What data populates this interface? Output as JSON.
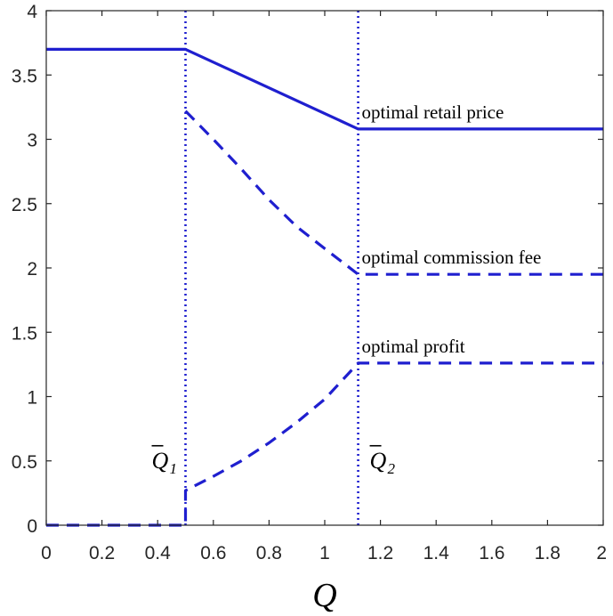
{
  "chart_data": {
    "type": "line",
    "xlabel": "Q",
    "xlim": [
      0,
      2
    ],
    "ylim": [
      0,
      4
    ],
    "x_ticks": [
      "0",
      "0.2",
      "0.4",
      "0.6",
      "0.8",
      "1",
      "1.2",
      "1.4",
      "1.6",
      "1.8",
      "2"
    ],
    "y_ticks": [
      "0",
      "0.5",
      "1",
      "1.5",
      "2",
      "2.5",
      "3",
      "3.5",
      "4"
    ],
    "grid": false,
    "line_color": "#1f1fcf",
    "series": [
      {
        "name": "optimal retail price",
        "style": "solid",
        "x": [
          0,
          0.5,
          1.12,
          2
        ],
        "y": [
          3.7,
          3.7,
          3.08,
          3.08
        ]
      },
      {
        "name": "optimal commission fee",
        "style": "dashed",
        "x": [
          0.5,
          0.6,
          0.7,
          0.8,
          0.9,
          1.0,
          1.12,
          2
        ],
        "y": [
          3.22,
          3.0,
          2.77,
          2.53,
          2.32,
          2.15,
          1.95,
          1.95
        ]
      },
      {
        "name": "optimal profit",
        "style": "dashed",
        "x": [
          0,
          0.5,
          0.5,
          0.6,
          0.7,
          0.8,
          0.9,
          1.0,
          1.12,
          2
        ],
        "y": [
          0,
          0,
          0.27,
          0.38,
          0.5,
          0.64,
          0.8,
          0.98,
          1.26,
          1.26
        ]
      }
    ],
    "vertical_lines": [
      {
        "x": 0.5,
        "style": "dotted",
        "label": "Q",
        "subscript": "1"
      },
      {
        "x": 1.12,
        "style": "dotted",
        "label": "Q",
        "subscript": "2"
      }
    ],
    "annotations": [
      {
        "text": "optimal retail price",
        "x": 1.12,
        "y": 3.08
      },
      {
        "text": "optimal commission fee",
        "x": 1.12,
        "y": 1.95
      },
      {
        "text": "optimal profit",
        "x": 1.12,
        "y": 1.26
      }
    ]
  }
}
